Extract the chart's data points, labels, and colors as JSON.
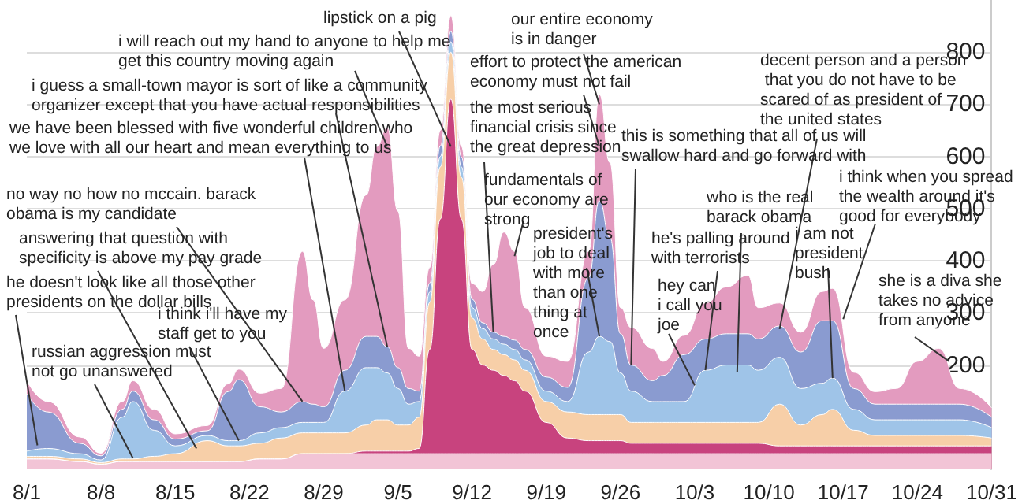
{
  "chart_data": {
    "type": "area",
    "stacked": true,
    "grid": "y",
    "x": [
      "--08-01",
      "--08-03",
      "--08-06",
      "--08-08",
      "--08-10",
      "--08-11",
      "--08-13",
      "--08-15",
      "--08-18",
      "--08-20",
      "--08-21",
      "--08-23",
      "--08-25",
      "--08-27",
      "--08-28",
      "--08-29",
      "--08-31",
      "--09-02",
      "--09-03",
      "--09-04",
      "--09-05",
      "--09-06",
      "--09-07",
      "--09-08",
      "--09-09",
      "--09-10",
      "--09-11",
      "--09-12",
      "--09-13",
      "--09-14",
      "--09-15",
      "--09-16",
      "--09-17",
      "--09-19",
      "--09-21",
      "--09-23",
      "--09-24",
      "--09-25",
      "--09-26",
      "--09-27",
      "--09-29",
      "--09-30",
      "--10-02",
      "--10-04",
      "--10-06",
      "--10-08",
      "--10-09",
      "--10-11",
      "--10-13",
      "--10-15",
      "--10-16",
      "--10-18",
      "--10-20",
      "--10-22",
      "--10-24",
      "--10-26",
      "--10-28",
      "--10-31"
    ],
    "series": [
      {
        "color": "#f2c4d6",
        "values": [
          20,
          20,
          15,
          10,
          15,
          15,
          15,
          15,
          15,
          15,
          15,
          20,
          20,
          30,
          30,
          30,
          30,
          30,
          30,
          30,
          30,
          30,
          30,
          30,
          30,
          30,
          30,
          30,
          30,
          30,
          30,
          30,
          30,
          30,
          30,
          30,
          30,
          30,
          30,
          30,
          30,
          30,
          30,
          30,
          30,
          30,
          30,
          30,
          30,
          30,
          30,
          30,
          30,
          30,
          30,
          30,
          30,
          30
        ]
      },
      {
        "color": "#c8437e",
        "values": [
          0,
          0,
          0,
          0,
          0,
          0,
          0,
          0,
          0,
          0,
          0,
          0,
          0,
          0,
          0,
          0,
          0,
          5,
          5,
          5,
          5,
          5,
          10,
          200,
          450,
          680,
          450,
          200,
          170,
          160,
          150,
          140,
          120,
          60,
          30,
          25,
          25,
          25,
          25,
          20,
          20,
          20,
          20,
          20,
          20,
          20,
          20,
          15,
          15,
          15,
          15,
          15,
          15,
          15,
          15,
          15,
          15,
          15
        ]
      },
      {
        "color": "#f7cfa8",
        "values": [
          5,
          5,
          5,
          3,
          5,
          5,
          10,
          15,
          40,
          30,
          30,
          30,
          40,
          40,
          40,
          40,
          40,
          50,
          60,
          60,
          50,
          50,
          60,
          90,
          100,
          90,
          80,
          60,
          50,
          40,
          40,
          40,
          40,
          40,
          50,
          50,
          50,
          50,
          50,
          40,
          40,
          40,
          40,
          40,
          40,
          40,
          40,
          80,
          40,
          60,
          70,
          30,
          20,
          20,
          20,
          20,
          20,
          15
        ]
      },
      {
        "color": "#9fc4e8",
        "values": [
          10,
          15,
          10,
          5,
          80,
          110,
          50,
          15,
          10,
          10,
          10,
          20,
          20,
          20,
          20,
          20,
          80,
          110,
          100,
          90,
          70,
          40,
          30,
          20,
          20,
          20,
          20,
          20,
          20,
          20,
          20,
          20,
          20,
          20,
          20,
          120,
          150,
          140,
          80,
          60,
          40,
          40,
          40,
          100,
          110,
          110,
          100,
          90,
          70,
          60,
          60,
          40,
          30,
          30,
          30,
          30,
          30,
          20
        ]
      },
      {
        "color": "#8a9bd0",
        "values": [
          110,
          70,
          20,
          8,
          15,
          20,
          20,
          13,
          9,
          94,
          117,
          50,
          30,
          40,
          35,
          30,
          40,
          60,
          60,
          50,
          40,
          30,
          20,
          17,
          20,
          20,
          19,
          16,
          11,
          13,
          15,
          18,
          20,
          27,
          27,
          143,
          260,
          200,
          75,
          50,
          40,
          50,
          90,
          60,
          60,
          60,
          60,
          60,
          70,
          120,
          110,
          40,
          30,
          30,
          30,
          30,
          30,
          20
        ]
      },
      {
        "color": "#e39bbf",
        "values": [
          25,
          20,
          12,
          5,
          15,
          20,
          20,
          10,
          10,
          15,
          20,
          26,
          45,
          288,
          200,
          112,
          135,
          271,
          364,
          421,
          300,
          77,
          67,
          30,
          30,
          30,
          20,
          30,
          60,
          130,
          200,
          170,
          80,
          40,
          50,
          50,
          205,
          143,
          50,
          72,
          62,
          27,
          37,
          69,
          90,
          112,
          60,
          44,
          38,
          56,
          62,
          31,
          24,
          30,
          82,
          107,
          30,
          18
        ]
      }
    ],
    "xlim": [
      "--08-01",
      "--10-31"
    ],
    "xticks": [
      {
        "value": "--08-01",
        "label": "8/1"
      },
      {
        "value": "--08-08",
        "label": "8/8"
      },
      {
        "value": "--08-15",
        "label": "8/15"
      },
      {
        "value": "--08-22",
        "label": "8/22"
      },
      {
        "value": "--08-29",
        "label": "8/29"
      },
      {
        "value": "--09-05",
        "label": "9/5"
      },
      {
        "value": "--09-12",
        "label": "9/12"
      },
      {
        "value": "--09-19",
        "label": "9/19"
      },
      {
        "value": "--09-26",
        "label": "9/26"
      },
      {
        "value": "--10-03",
        "label": "10/3"
      },
      {
        "value": "--10-10",
        "label": "10/10"
      },
      {
        "value": "--10-17",
        "label": "10/17"
      },
      {
        "value": "--10-24",
        "label": "10/24"
      },
      {
        "value": "--10-31",
        "label": "10/31"
      }
    ],
    "ylim": [
      0,
      900
    ],
    "yticks": [
      200,
      300,
      400,
      500,
      600,
      700,
      800
    ],
    "annotations": [
      {
        "text": "lipstick on a pig",
        "x": "--09-10",
        "y": 619
      },
      {
        "text": "i will reach out my hand to anyone to help me\nget this country moving again",
        "x": "--09-04",
        "y": 619
      },
      {
        "text": "i guess a small-town mayor is sort of like a community\norganizer except that you have actual responsibilities",
        "x": "--09-04",
        "y": 235
      },
      {
        "text": "we have been blessed with five wonderful children who\nwe love with all our heart and mean everything to us",
        "x": "--08-31",
        "y": 150
      },
      {
        "text": "no way no how no mccain. barack\nobama is my candidate",
        "x": "--08-27",
        "y": 130
      },
      {
        "text": "answering that question with\nspecificity is above my pay grade",
        "x": "--08-17",
        "y": 40
      },
      {
        "text": "he doesn't look like all those other\npresidents on the dollar bills",
        "x": "--08-02",
        "y": 46
      },
      {
        "text": "i think i'll have my\nstaff get to you",
        "x": "--08-21",
        "y": 55
      },
      {
        "text": "russian aggression must\nnot go unanswered",
        "x": "--08-11",
        "y": 22
      },
      {
        "text": "our entire economy\nis in danger",
        "x": "--09-24",
        "y": 700
      },
      {
        "text": "effort to protect the american\neconomy must not fail",
        "x": "--09-24",
        "y": 619
      },
      {
        "text": "the most serious\nfinancial crisis since\nthe great depression",
        "x": "--09-14",
        "y": 263
      },
      {
        "text": "fundamentals of\nour economy are\nstrong",
        "x": "--09-16",
        "y": 409
      },
      {
        "text": "president's\njob to deal\nwith more\nthan one\nthing at\nonce",
        "x": "--09-24",
        "y": 255
      },
      {
        "text": "this is something that all of us will\nswallow hard and go forward with",
        "x": "--09-27",
        "y": 200
      },
      {
        "text": "he's palling around\nwith terrorists",
        "x": "--10-04",
        "y": 190
      },
      {
        "text": "hey can\ni call you\njoe",
        "x": "--10-03",
        "y": 161
      },
      {
        "text": "who is the real\nbarack obama",
        "x": "--10-07",
        "y": 186
      },
      {
        "text": "i am not\npresident\nbush",
        "x": "--10-16",
        "y": 175
      },
      {
        "text": "decent person and a person\n that you do not have to be\nscared of as president of\nthe united states",
        "x": "--10-11",
        "y": 269
      },
      {
        "text": "i think when you spread\nthe wealth around it's\ngood for everybody",
        "x": "--10-17",
        "y": 288
      },
      {
        "text": "she is a diva she\ntakes no advice\nfrom anyone",
        "x": "--10-27",
        "y": 207
      }
    ]
  }
}
